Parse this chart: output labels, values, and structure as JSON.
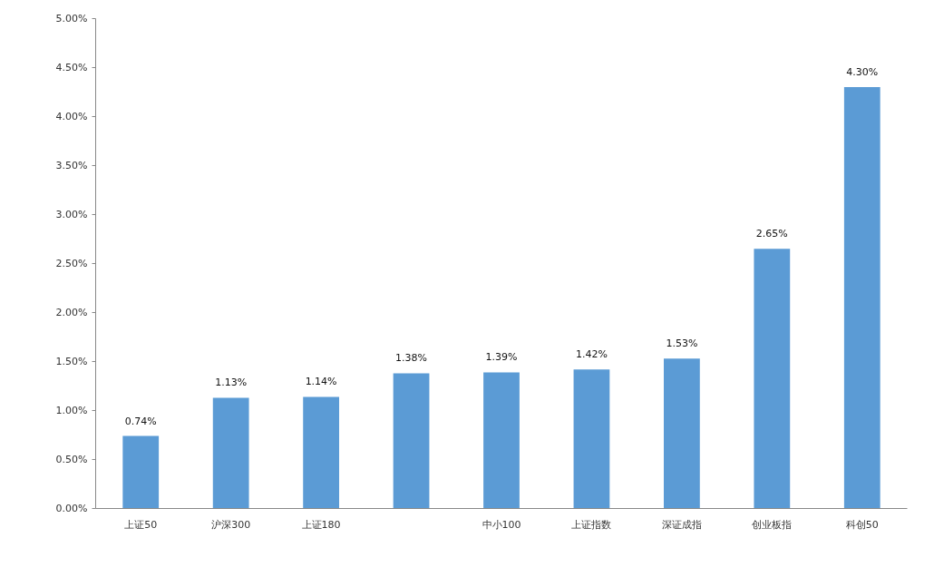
{
  "chart_data": {
    "type": "bar",
    "categories": [
      "上证50",
      "沪深300",
      "上证180",
      null,
      "中小100",
      "上证指数",
      "深证成指",
      "创业板指",
      "科创50"
    ],
    "values": [
      0.74,
      1.13,
      1.14,
      1.38,
      1.39,
      1.42,
      1.53,
      2.65,
      4.3
    ],
    "color": "#5b9bd5",
    "value_labels": [
      "0.74%",
      "1.13%",
      "1.14%",
      "1.38%",
      "1.39%",
      "1.42%",
      "1.53%",
      "2.65%",
      "4.30%"
    ],
    "ylim": [
      0,
      5
    ],
    "yticks": [
      {
        "value": 0,
        "label": "0.00%"
      },
      {
        "value": 0.5,
        "label": "0.50%"
      },
      {
        "value": 1,
        "label": "1.00%"
      },
      {
        "value": 1.5,
        "label": "1.50%"
      },
      {
        "value": 2,
        "label": "2.00%"
      },
      {
        "value": 2.5,
        "label": "2.50%"
      },
      {
        "value": 3,
        "label": "3.00%"
      },
      {
        "value": 3.5,
        "label": "3.50%"
      },
      {
        "value": 4,
        "label": "4.00%"
      },
      {
        "value": 4.5,
        "label": "4.50%"
      },
      {
        "value": 5,
        "label": "5.00%"
      }
    ],
    "grid": false
  }
}
